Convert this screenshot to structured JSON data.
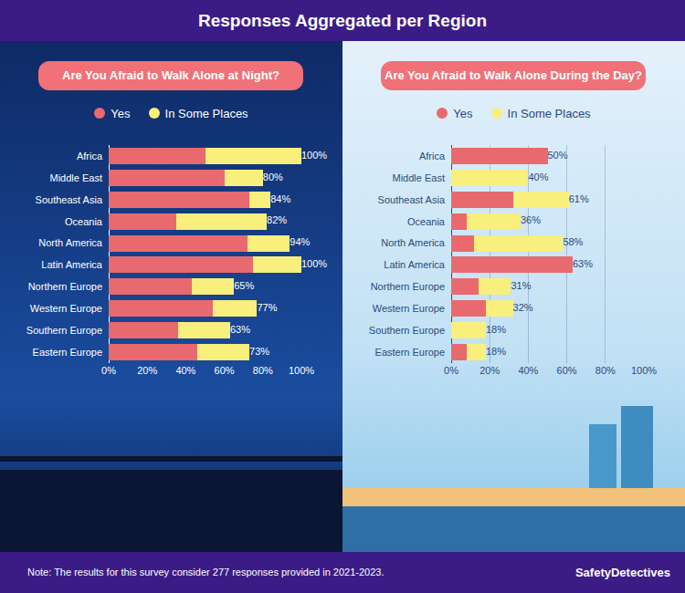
{
  "title": "Responses Aggregated per Region",
  "note": "Note: The results for this survey consider 277 responses provided in 2021-2023.",
  "brand": "SafetyDetectives",
  "chart_data": [
    {
      "type": "bar",
      "title": "Are You Afraid to Walk Alone at Night?",
      "orientation": "horizontal",
      "stacked": true,
      "legend": "top",
      "grid": false,
      "categories": [
        "Africa",
        "Middle East",
        "Southeast Asia",
        "Oceania",
        "North America",
        "Latin America",
        "Northern Europe",
        "Western Europe",
        "Southern Europe",
        "Eastern Europe"
      ],
      "series": [
        {
          "name": "Yes",
          "color": "#e86a6e",
          "values": [
            50,
            60,
            73,
            35,
            72,
            75,
            43,
            54,
            36,
            46
          ]
        },
        {
          "name": "In Some Places",
          "color": "#f8ef7c",
          "values": [
            50,
            20,
            11,
            47,
            22,
            25,
            22,
            23,
            27,
            27
          ]
        }
      ],
      "totals": [
        100,
        80,
        84,
        82,
        94,
        100,
        65,
        77,
        63,
        73
      ],
      "total_labels": [
        "100%",
        "80%",
        "84%",
        "82%",
        "94%",
        "100%",
        "65%",
        "77%",
        "63%",
        "73%"
      ],
      "xlim": [
        0,
        100
      ],
      "xticks": [
        {
          "value": 0,
          "label": "0%"
        },
        {
          "value": 20,
          "label": "20%"
        },
        {
          "value": 40,
          "label": "40%"
        },
        {
          "value": 60,
          "label": "60%"
        },
        {
          "value": 80,
          "label": "80%"
        },
        {
          "value": 100,
          "label": "100%"
        }
      ]
    },
    {
      "type": "bar",
      "title": "Are You Afraid to Walk Alone During the Day?",
      "orientation": "horizontal",
      "stacked": true,
      "legend": "top",
      "grid": true,
      "categories": [
        "Africa",
        "Middle East",
        "Southeast Asia",
        "Oceania",
        "North America",
        "Latin America",
        "Northern Europe",
        "Western Europe",
        "Southern Europe",
        "Eastern Europe"
      ],
      "series": [
        {
          "name": "Yes",
          "color": "#e86a6e",
          "values": [
            50,
            0,
            32,
            8,
            12,
            63,
            14,
            18,
            0,
            8
          ]
        },
        {
          "name": "In Some Places",
          "color": "#f8ef7c",
          "values": [
            0,
            40,
            29,
            28,
            46,
            0,
            17,
            14,
            18,
            10
          ]
        }
      ],
      "totals": [
        50,
        40,
        61,
        36,
        58,
        63,
        31,
        32,
        18,
        18
      ],
      "total_labels": [
        "50%",
        "40%",
        "61%",
        "36%",
        "58%",
        "63%",
        "31%",
        "32%",
        "18%",
        "18%"
      ],
      "xlim": [
        0,
        100
      ],
      "xticks": [
        {
          "value": 0,
          "label": "0%"
        },
        {
          "value": 20,
          "label": "20%"
        },
        {
          "value": 40,
          "label": "40%"
        },
        {
          "value": 60,
          "label": "60%"
        },
        {
          "value": 80,
          "label": "80%"
        },
        {
          "value": 100,
          "label": "100%"
        }
      ]
    }
  ]
}
